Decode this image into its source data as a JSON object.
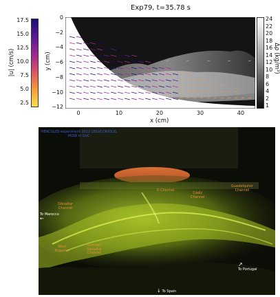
{
  "top_figure": {
    "title": "Exp79, t=35.78 s",
    "xlabel": "x (cm)",
    "ylabel": "y (cm)",
    "x_ticks": [
      "0",
      "10",
      "20",
      "30",
      "40"
    ],
    "y_ticks": [
      "0",
      "−2",
      "−4",
      "−6",
      "−8",
      "−10",
      "−12"
    ],
    "left_colorbar": {
      "label": "|u| (cm/s)",
      "ticks": [
        "17.5",
        "15.0",
        "12.5",
        "10.0",
        "7.5",
        "5.0",
        "2.5"
      ],
      "colors": [
        "#1c0d7a",
        "#6a1a9a",
        "#b02c8a",
        "#e05a5e",
        "#f79a3a",
        "#f6e24a"
      ]
    },
    "right_colorbar": {
      "label": "Δρ (kg/m³)",
      "ticks": [
        "24",
        "22",
        "20",
        "18",
        "16",
        "14",
        "12",
        "10",
        "8",
        "6",
        "4",
        "2",
        "1"
      ],
      "colors": [
        "#ffffff",
        "#bdbdbd",
        "#6b6b6b",
        "#101010"
      ]
    }
  },
  "photo": {
    "header": "HERCULES experiment 2022 LEGI/CORIOLIS\nMOW in GoC",
    "labels": {
      "marocco": "To Marocco",
      "gibraltar_channel": "Gibraltar\nChannel",
      "e_channel": "E-Channel",
      "cadiz_channel": "Cádiz\nChannel",
      "guadalquivir": "Guadalquivir\nChannel",
      "west_espartel": "West\nEspartel",
      "northern_gibraltar": "Northern\nGibraltar\nChannel",
      "portugal": "To Portugal",
      "spain": "To Spain"
    }
  }
}
